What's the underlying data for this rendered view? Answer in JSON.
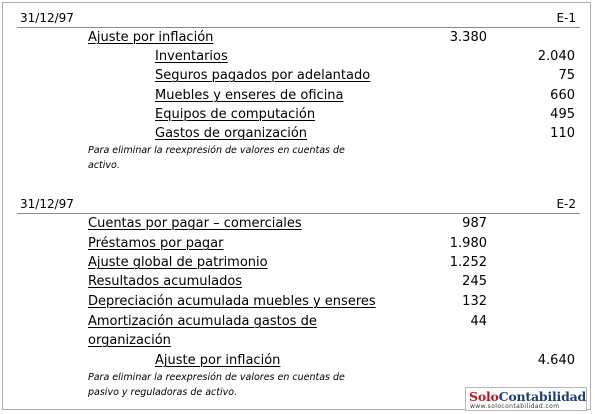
{
  "entries": [
    {
      "date": "31/12/97",
      "code": "E-1",
      "lines": [
        {
          "account": "Ajuste por inflación",
          "debit": "3.380",
          "credit": "",
          "level": 1
        },
        {
          "account": "Inventarios",
          "debit": "",
          "credit": "2.040",
          "level": 2
        },
        {
          "account": "Seguros pagados por adelantado",
          "debit": "",
          "credit": "75",
          "level": 2
        },
        {
          "account": "Muebles y enseres de oficina",
          "debit": "",
          "credit": "660",
          "level": 2
        },
        {
          "account": "Equipos de computación",
          "debit": "",
          "credit": "495",
          "level": 2
        },
        {
          "account": "Gastos de organización",
          "debit": "",
          "credit": "110",
          "level": 2
        }
      ],
      "note": [
        "Para eliminar la reexpresión de valores en cuentas de",
        "activo."
      ]
    },
    {
      "date": "31/12/97",
      "code": "E-2",
      "lines": [
        {
          "account": "Cuentas por pagar – comerciales",
          "debit": "987",
          "credit": "",
          "level": 1
        },
        {
          "account": "Préstamos por pagar",
          "debit": "1.980",
          "credit": "",
          "level": 1
        },
        {
          "account": "Ajuste global de patrimonio",
          "debit": "1.252",
          "credit": "",
          "level": 1
        },
        {
          "account": "Resultados acumulados",
          "debit": "245",
          "credit": "",
          "level": 1
        },
        {
          "account": "Depreciación acumulada muebles y enseres",
          "debit": "132",
          "credit": "",
          "level": 1
        },
        {
          "account": "Amortización acumulada gastos de",
          "account2": "organización",
          "debit": "44",
          "credit": "",
          "level": 1
        },
        {
          "account": "Ajuste por inflación",
          "debit": "",
          "credit": "4.640",
          "level": 2
        }
      ],
      "note": [
        "Para eliminar la reexpresión de valores en cuentas de",
        "pasivo y reguladoras de activo."
      ]
    }
  ],
  "logo": {
    "part1": "Solo",
    "part2": "Contabilidad",
    "url": "www.solocontabilidad.com"
  }
}
